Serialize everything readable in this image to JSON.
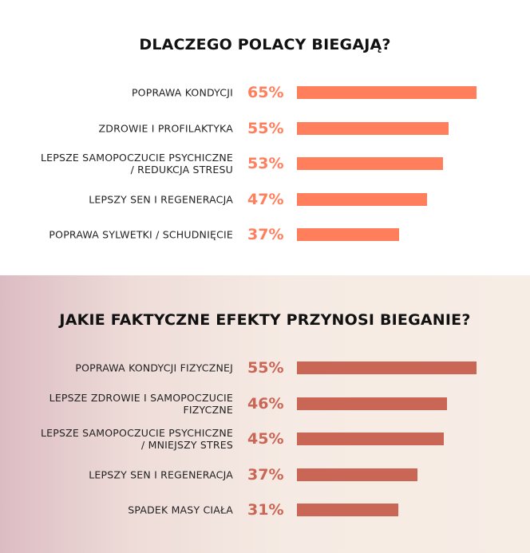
{
  "chart_data": [
    {
      "type": "bar",
      "orientation": "horizontal",
      "title": "DLACZEGO POLACY BIEGAJĄ?",
      "color": "#ff7f5c",
      "categories": [
        "POPRAWA KONDYCJI",
        "ZDROWIE I PROFILAKTYKA",
        "LEPSZE SAMOPOCZUCIE PSYCHICZNE / REDUKCJA STRESU",
        "LEPSZY SEN I REGENERACJA",
        "POPRAWA SYLWETKI / SCHUDNIĘCIE"
      ],
      "values": [
        65,
        55,
        53,
        47,
        37
      ],
      "value_labels": [
        "65%",
        "55%",
        "53%",
        "47%",
        "37%"
      ]
    },
    {
      "type": "bar",
      "orientation": "horizontal",
      "title": "JAKIE FAKTYCZNE EFEKTY PRZYNOSI BIEGANIE?",
      "color": "#c96656",
      "categories": [
        "POPRAWA KONDYCJI FIZYCZNEJ",
        "LEPSZE ZDROWIE I SAMOPOCZUCIE FIZYCZNE",
        "LEPSZE SAMOPOCZUCIE PSYCHICZNE / MNIEJSZY STRES",
        "LEPSZY SEN I REGENERACJA",
        "SPADEK MASY CIAŁA"
      ],
      "values": [
        55,
        46,
        45,
        37,
        31
      ],
      "value_labels": [
        "55%",
        "46%",
        "45%",
        "37%",
        "31%"
      ]
    }
  ]
}
